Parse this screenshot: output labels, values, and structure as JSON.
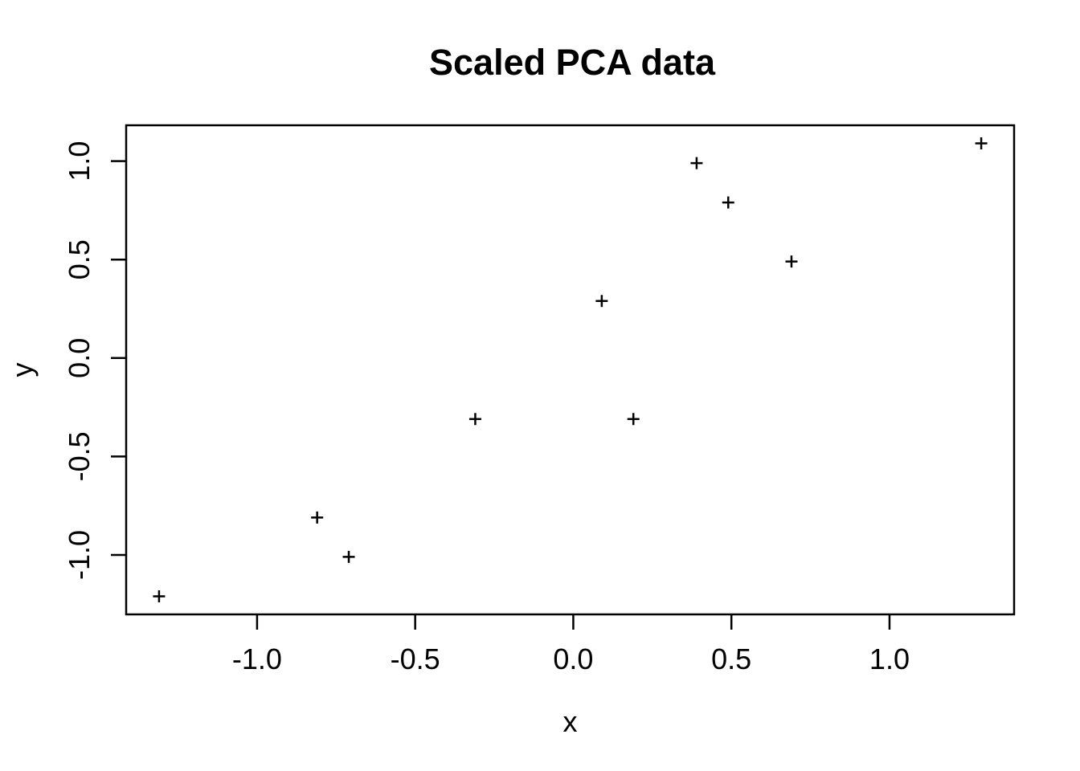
{
  "chart_data": {
    "type": "scatter",
    "title": "Scaled PCA data",
    "xlabel": "x",
    "ylabel": "y",
    "marker": "plus",
    "marker_color": "#000000",
    "axis_color": "#000000",
    "background_color": "#ffffff",
    "grid": false,
    "legend": null,
    "xlim": [
      -1.414,
      1.394
    ],
    "ylim": [
      -1.302,
      1.182
    ],
    "x_ticks": {
      "values": [
        -1.0,
        -0.5,
        0.0,
        0.5,
        1.0
      ],
      "labels": [
        "-1.0",
        "-0.5",
        "0.0",
        "0.5",
        "1.0"
      ]
    },
    "y_ticks": {
      "values": [
        -1.0,
        -0.5,
        0.0,
        0.5,
        1.0
      ],
      "labels": [
        "-1.0",
        "-0.5",
        "0.0",
        "0.5",
        "1.0"
      ]
    },
    "points": [
      {
        "x": 0.69,
        "y": 0.49
      },
      {
        "x": -1.31,
        "y": -1.21
      },
      {
        "x": 0.39,
        "y": 0.99
      },
      {
        "x": 0.09,
        "y": 0.29
      },
      {
        "x": 1.29,
        "y": 1.09
      },
      {
        "x": 0.49,
        "y": 0.79
      },
      {
        "x": 0.19,
        "y": -0.31
      },
      {
        "x": -0.81,
        "y": -0.81
      },
      {
        "x": -0.31,
        "y": -0.31
      },
      {
        "x": -0.71,
        "y": -1.01
      }
    ]
  }
}
